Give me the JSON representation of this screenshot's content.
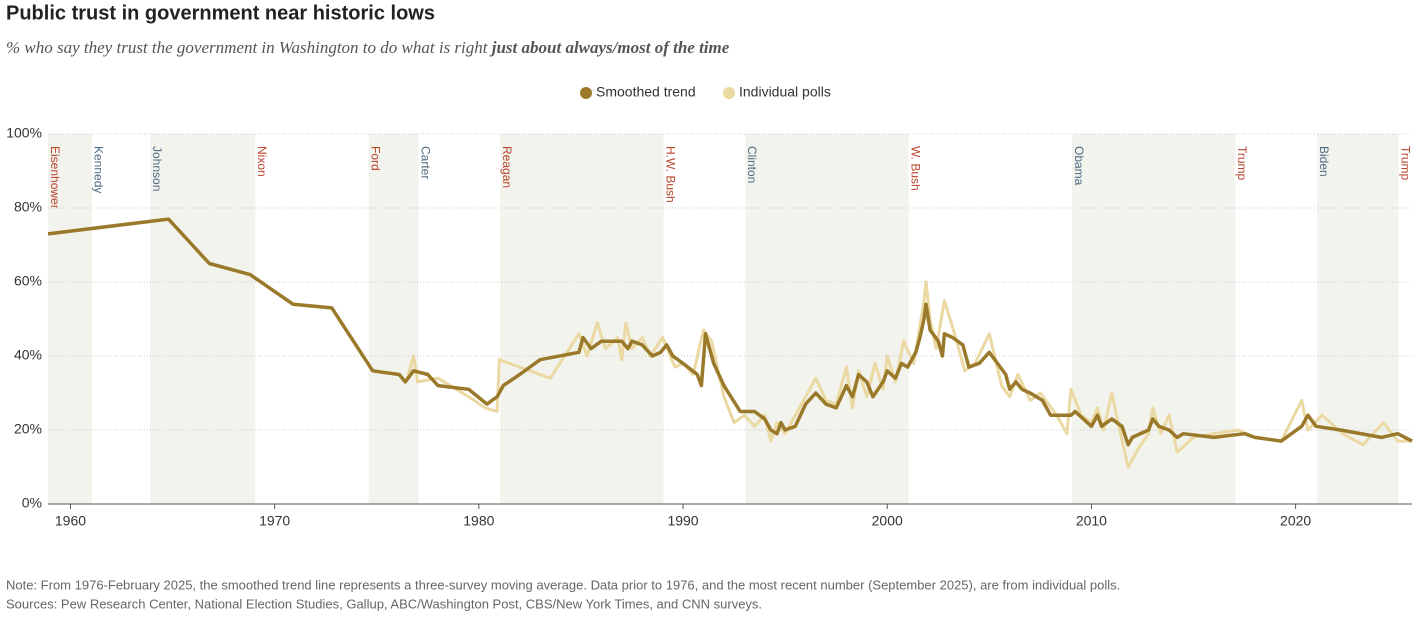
{
  "chart_data": {
    "type": "line",
    "title": "Public trust in government near historic lows",
    "subtitle": "% who say they trust the government in Washington to do what is right ",
    "subtitle_bold": "just about always/most of the time",
    "note": "Note: From 1976-February 2025, the smoothed trend line represents a three-survey moving average. Data prior to 1976, and the most recent number (September 2025), are from individual polls.",
    "sources": "Sources: Pew Research Center, National Election Studies, Gallup, ABC/Washington Post, CBS/New York Times, and CNN surveys.",
    "xlim": [
      1958.9,
      2025.7
    ],
    "xticks": [
      1960,
      1970,
      1980,
      1990,
      2000,
      2010,
      2020
    ],
    "ylim": [
      0,
      100
    ],
    "yticks": [
      {
        "value": 0,
        "label": "0%"
      },
      {
        "value": 20,
        "label": "20%"
      },
      {
        "value": 40,
        "label": "40%"
      },
      {
        "value": 60,
        "label": "60%"
      },
      {
        "value": 80,
        "label": "80%"
      },
      {
        "value": 100,
        "label": "100%"
      }
    ],
    "grid": true,
    "legend": "top",
    "presidents": [
      {
        "name": "Eisenhower",
        "start": 1953,
        "color": "#b8442c"
      },
      {
        "name": "Kennedy",
        "start": 1961.05,
        "color": "#4d6a82"
      },
      {
        "name": "Johnson",
        "start": 1963.9,
        "color": "#4d6a82"
      },
      {
        "name": "Nixon",
        "start": 1969.05,
        "color": "#b8442c"
      },
      {
        "name": "Ford",
        "start": 1974.6,
        "color": "#b8442c"
      },
      {
        "name": "Carter",
        "start": 1977.05,
        "color": "#4d6a82"
      },
      {
        "name": "Reagan",
        "start": 1981.05,
        "color": "#b8442c"
      },
      {
        "name": "H.W. Bush",
        "start": 1989.05,
        "color": "#b8442c"
      },
      {
        "name": "Clinton",
        "start": 1993.05,
        "color": "#4d6a82"
      },
      {
        "name": "W. Bush",
        "start": 2001.05,
        "color": "#b8442c"
      },
      {
        "name": "Obama",
        "start": 2009.05,
        "color": "#4d6a82"
      },
      {
        "name": "Trump",
        "start": 2017.05,
        "color": "#b8442c"
      },
      {
        "name": "Biden",
        "start": 2021.05,
        "color": "#4d6a82"
      },
      {
        "name": "Trump",
        "start": 2025.05,
        "color": "#b8442c"
      }
    ],
    "series": [
      {
        "name": "Smoothed trend",
        "color": "#9a7a2a",
        "x": [
          1958.9,
          1964.8,
          1966.8,
          1968.8,
          1970.9,
          1972.8,
          1974.8,
          1976.1,
          1976.4,
          1976.8,
          1977.5,
          1978,
          1979.5,
          1980.4,
          1980.9,
          1981.2,
          1982,
          1983,
          1984.9,
          1985.1,
          1985.5,
          1986,
          1987,
          1987.3,
          1987.5,
          1988,
          1988.5,
          1988.9,
          1989.2,
          1989.5,
          1990,
          1990.7,
          1990.9,
          1991.1,
          1991.5,
          1992,
          1992.8,
          1993.5,
          1994,
          1994.3,
          1994.6,
          1994.8,
          1995,
          1995.5,
          1996,
          1996.5,
          1997,
          1997.5,
          1998,
          1998.3,
          1998.6,
          1999,
          1999.3,
          1999.8,
          2000,
          2000.4,
          2000.7,
          2001,
          2001.4,
          2001.6,
          2001.8,
          2001.9,
          2002.1,
          2002.5,
          2002.7,
          2002.8,
          2003.2,
          2003.7,
          2004,
          2004.5,
          2005,
          2005.8,
          2006,
          2006.3,
          2006.6,
          2007,
          2007.6,
          2008,
          2009,
          2009.2,
          2010,
          2010.3,
          2010.5,
          2011,
          2011.5,
          2011.8,
          2012,
          2012.8,
          2013,
          2013.3,
          2013.8,
          2014.2,
          2014.5,
          2016,
          2017.5,
          2018,
          2019.3,
          2020.3,
          2020.6,
          2021,
          2022.2,
          2024.2,
          2025,
          2025.7
        ],
        "values": [
          73,
          77,
          65,
          62,
          54,
          53,
          36,
          35,
          33,
          36,
          35,
          32,
          31,
          27,
          29,
          32,
          35,
          39,
          41,
          45,
          42,
          44,
          44,
          42,
          44,
          43,
          40,
          41,
          43,
          40,
          38,
          35,
          32,
          46,
          38,
          32,
          25,
          25,
          23,
          20,
          19,
          22,
          20,
          21,
          27,
          30,
          27,
          26,
          32,
          29,
          35,
          33,
          29,
          33,
          36,
          34,
          38,
          37,
          41,
          45,
          50,
          54,
          47,
          44,
          40,
          46,
          45,
          43,
          37,
          38,
          41,
          35,
          31,
          33,
          31,
          30,
          28,
          24,
          24,
          25,
          21,
          24,
          21,
          23,
          21,
          16,
          18,
          20,
          23,
          21,
          20,
          18,
          19,
          18,
          19,
          18,
          17,
          21,
          24,
          21,
          20,
          18,
          19,
          17
        ]
      },
      {
        "name": "Individual polls",
        "color": "#ead9a3",
        "x": [
          1976.5,
          1976.8,
          1977,
          1978,
          1979.5,
          1980.3,
          1980.9,
          1981,
          1982,
          1983.5,
          1984.9,
          1985.3,
          1985.8,
          1986.2,
          1986.8,
          1987,
          1987.2,
          1987.5,
          1988,
          1988.4,
          1989,
          1989.6,
          1990,
          1990.5,
          1991,
          1991.4,
          1992,
          1992.5,
          1993,
          1993.5,
          1994,
          1994.3,
          1994.6,
          1995,
          1995.6,
          1996,
          1996.5,
          1997,
          1997.5,
          1998,
          1998.3,
          1998.6,
          1999,
          1999.4,
          1999.8,
          2000,
          2000.4,
          2000.8,
          2001.3,
          2001.8,
          2001.9,
          2002.1,
          2002.4,
          2002.8,
          2003.3,
          2003.8,
          2004.3,
          2005,
          2005.6,
          2006,
          2006.4,
          2007,
          2007.5,
          2008.3,
          2008.8,
          2009,
          2009.5,
          2010,
          2010.3,
          2010.6,
          2011,
          2011.3,
          2011.8,
          2012.3,
          2012.8,
          2013,
          2013.4,
          2013.8,
          2014.2,
          2015,
          2016,
          2017.2,
          2018,
          2019.3,
          2020.3,
          2020.6,
          2021.3,
          2022.3,
          2023.3,
          2024.3,
          2025,
          2025.7
        ],
        "values": [
          34,
          40,
          33,
          34,
          29,
          26,
          25,
          39,
          37,
          34,
          46,
          40,
          49,
          42,
          45,
          39,
          49,
          42,
          45,
          40,
          45,
          37,
          38,
          35,
          47,
          44,
          29,
          22,
          24,
          21,
          24,
          17,
          22,
          19,
          25,
          29,
          34,
          28,
          27,
          37,
          26,
          36,
          29,
          38,
          31,
          40,
          33,
          44,
          38,
          55,
          60,
          50,
          42,
          55,
          46,
          36,
          38,
          46,
          32,
          29,
          35,
          28,
          30,
          24,
          19,
          31,
          24,
          22,
          26,
          20,
          30,
          22,
          10,
          15,
          19,
          26,
          19,
          24,
          14,
          18,
          19,
          20,
          18,
          17,
          28,
          20,
          24,
          19,
          16,
          22,
          17,
          17
        ]
      }
    ]
  }
}
